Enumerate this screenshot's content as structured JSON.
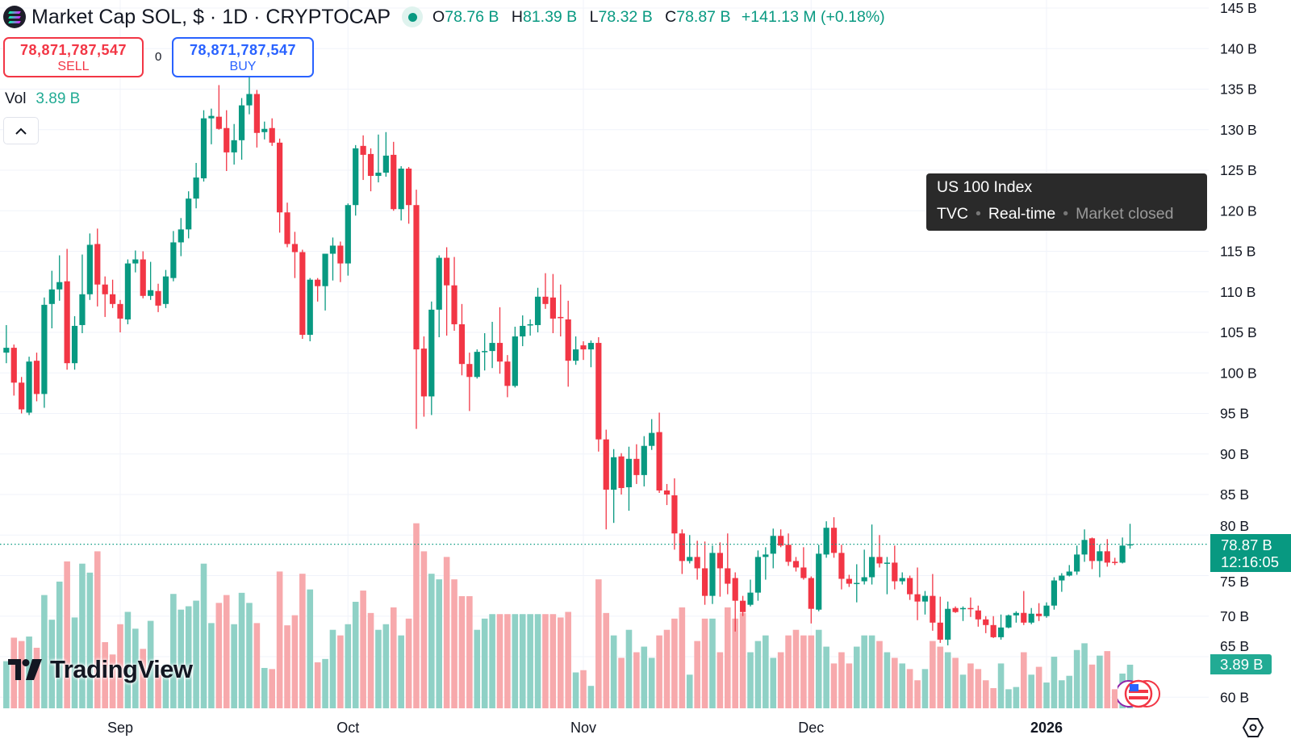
{
  "header": {
    "title": "Market Cap SOL, $ · 1D · CRYPTOCAP",
    "ohlc": {
      "o_label": "O",
      "o": "78.76 B",
      "h_label": "H",
      "h": "81.39 B",
      "l_label": "L",
      "l": "78.32 B",
      "c_label": "C",
      "c": "78.87 B",
      "change": "+141.13 M (+0.18%)"
    }
  },
  "trade": {
    "sell_price": "78,871,787,547",
    "sell_label": "SELL",
    "spread": "0",
    "buy_price": "78,871,787,547",
    "buy_label": "BUY"
  },
  "volume_legend": {
    "label": "Vol",
    "value": "3.89 B"
  },
  "tooltip": {
    "title": "US 100 Index",
    "source": "TVC",
    "mode": "Real-time",
    "status": "Market closed"
  },
  "price_badge": {
    "price": "78.87 B",
    "countdown": "12:16:05"
  },
  "volume_badge": "3.89 B",
  "brand": "TradingView",
  "colors": {
    "up": "#089981",
    "down": "#F23645",
    "vol_up": "#8fd1c6",
    "vol_down": "#f7a9ac"
  },
  "chart_data": {
    "type": "candlestick",
    "title": "Market Cap SOL, $ · 1D · CRYPTOCAP",
    "fields": [
      "open",
      "high",
      "low",
      "close",
      "volume"
    ],
    "units": "B",
    "ylim": [
      60,
      145
    ],
    "y_ticks": [
      "145 B",
      "140 B",
      "135 B",
      "130 B",
      "125 B",
      "120 B",
      "115 B",
      "110 B",
      "105 B",
      "100 B",
      "95 B",
      "90 B",
      "85 B",
      "80 B",
      "75 B",
      "70 B",
      "65 B",
      "60 B"
    ],
    "y_tick_values": [
      145,
      140,
      135,
      130,
      125,
      120,
      115,
      110,
      105,
      100,
      95,
      90,
      85,
      80,
      75,
      70,
      65,
      60
    ],
    "x_ticks": [
      {
        "label": "Sep",
        "index": 15
      },
      {
        "label": "Oct",
        "index": 45
      },
      {
        "label": "Nov",
        "index": 76
      },
      {
        "label": "Dec",
        "index": 106
      },
      {
        "label": "2026",
        "index": 137,
        "bold": true
      }
    ],
    "last_price": 78.87,
    "grid": true,
    "candles": [
      [
        102.5,
        105.9,
        101.2,
        103.1,
        4.2
      ],
      [
        103.1,
        103.5,
        97.2,
        98.8,
        6.3
      ],
      [
        98.8,
        99.5,
        95.0,
        95.5,
        6.0
      ],
      [
        95.1,
        102,
        94.8,
        101.4,
        6.4
      ],
      [
        101.5,
        102.5,
        96.5,
        97.4,
        5.4
      ],
      [
        97.4,
        109.3,
        95.7,
        108.4,
        10.1
      ],
      [
        108.5,
        112.6,
        105.5,
        110.3,
        7.9
      ],
      [
        110.3,
        114.5,
        108.9,
        111.2,
        11.3
      ],
      [
        111.3,
        115.3,
        100.4,
        101.2,
        13.1
      ],
      [
        101.2,
        107,
        100.4,
        105.8,
        8.1
      ],
      [
        105.9,
        114.6,
        104.9,
        109.7,
        12.9
      ],
      [
        109.7,
        117.2,
        109,
        115.8,
        12.1
      ],
      [
        115.9,
        117.8,
        108.2,
        110.9,
        14.0
      ],
      [
        110.9,
        111.9,
        106.9,
        109.7,
        5.9
      ],
      [
        109.7,
        111.5,
        108,
        108.5,
        4.8
      ],
      [
        108.5,
        109,
        105,
        106.7,
        7.5
      ],
      [
        106.6,
        114,
        106,
        113.5,
        8.6
      ],
      [
        113.5,
        115.1,
        112.4,
        114,
        7.1
      ],
      [
        114,
        115,
        109.2,
        109.5,
        5.3
      ],
      [
        109.5,
        113.7,
        109,
        110.2,
        7.8
      ],
      [
        110.1,
        111,
        107.5,
        108.3,
        3.0
      ],
      [
        108.5,
        112.7,
        108,
        111.9,
        3.9
      ],
      [
        111.7,
        117.5,
        111.3,
        116.1,
        10.2
      ],
      [
        116.1,
        119.1,
        114.4,
        117.7,
        8.8
      ],
      [
        117.7,
        122.4,
        116.6,
        121.5,
        9.1
      ],
      [
        121.5,
        125.9,
        120.3,
        124.1,
        9.6
      ],
      [
        124,
        132.4,
        123.6,
        131.4,
        12.9
      ],
      [
        131.4,
        132.6,
        128.2,
        131.7,
        7.6
      ],
      [
        131.6,
        135.5,
        130,
        130.1,
        9.4
      ],
      [
        130.2,
        132.4,
        124.9,
        127.2,
        10.1
      ],
      [
        127.2,
        130.7,
        125.7,
        128.7,
        7.5
      ],
      [
        128.7,
        133.9,
        126.3,
        133,
        10.3
      ],
      [
        133,
        136.6,
        131.9,
        134.4,
        9.4
      ],
      [
        134.4,
        134.9,
        127.8,
        129.6,
        7.6
      ],
      [
        129.7,
        131,
        128.8,
        130.1,
        3.6
      ],
      [
        130.2,
        131.4,
        128,
        128.4,
        3.5
      ],
      [
        128.4,
        128.9,
        117.3,
        119.8,
        12.2
      ],
      [
        119.8,
        121,
        115.5,
        115.9,
        7.4
      ],
      [
        115.9,
        117.4,
        111.7,
        114.9,
        8.3
      ],
      [
        114.9,
        115.2,
        104.2,
        104.7,
        12.0
      ],
      [
        104.7,
        111.7,
        103.9,
        111.5,
        10.6
      ],
      [
        111.5,
        111.7,
        108.8,
        110.7,
        4.1
      ],
      [
        110.7,
        114.7,
        107.7,
        114.7,
        4.4
      ],
      [
        114.7,
        116.7,
        111.4,
        115.7,
        7.0
      ],
      [
        115.7,
        116.2,
        111.2,
        113.5,
        6.5
      ],
      [
        113.5,
        120.9,
        112,
        120.7,
        7.5
      ],
      [
        120.7,
        128.1,
        119.4,
        127.7,
        9.5
      ],
      [
        128,
        129.3,
        123.8,
        126.9,
        10.5
      ],
      [
        127,
        127.7,
        122.4,
        124.3,
        8.5
      ],
      [
        124.3,
        129.4,
        123.5,
        124.7,
        7.0
      ],
      [
        124.7,
        129.7,
        124.2,
        126.8,
        7.5
      ],
      [
        126.9,
        128.5,
        120,
        120.2,
        9.0
      ],
      [
        120.2,
        125.5,
        118.8,
        125.2,
        6.5
      ],
      [
        125.2,
        125.4,
        118.4,
        120.7,
        8.0
      ],
      [
        120.7,
        122.6,
        93.1,
        102.9,
        16.5
      ],
      [
        103,
        104.5,
        94.6,
        97.1,
        14.0
      ],
      [
        97.1,
        108.8,
        94.8,
        107.8,
        12.0
      ],
      [
        107.8,
        114.5,
        104.4,
        114.2,
        11.5
      ],
      [
        114.2,
        115.5,
        104.6,
        110.8,
        13.5
      ],
      [
        110.8,
        114.3,
        105.2,
        106,
        11.5
      ],
      [
        106,
        108.5,
        99.7,
        101.1,
        10.0
      ],
      [
        101.1,
        102.5,
        95.3,
        99.5,
        10.0
      ],
      [
        99.5,
        102.9,
        99.3,
        102.6,
        7.0
      ],
      [
        102.6,
        104.9,
        100.3,
        102.7,
        8.0
      ],
      [
        102.7,
        106.3,
        100.6,
        103.7,
        8.4
      ],
      [
        103.7,
        108.1,
        99.9,
        101.4,
        8.4
      ],
      [
        101.4,
        102.2,
        97,
        98.4,
        8.4
      ],
      [
        98.4,
        105.7,
        98.2,
        104.5,
        8.4
      ],
      [
        104.5,
        107.1,
        103.3,
        105.8,
        8.4
      ],
      [
        105.9,
        106.6,
        104.6,
        106,
        8.4
      ],
      [
        105.9,
        110.5,
        105,
        109.4,
        8.4
      ],
      [
        109.4,
        112.3,
        107.9,
        108.5,
        8.4
      ],
      [
        109.3,
        112.2,
        104.9,
        106.7,
        8.4
      ],
      [
        106.9,
        110.9,
        104.5,
        106.8,
        8.1
      ],
      [
        106.6,
        108.9,
        98.3,
        101.5,
        8.6
      ],
      [
        101.5,
        104.5,
        101,
        102.9,
        3.2
      ],
      [
        103.4,
        103.9,
        101.6,
        102.9,
        3.4
      ],
      [
        102.9,
        104,
        100.7,
        103.7,
        2.0
      ],
      [
        103.7,
        104.4,
        90.3,
        91.8,
        11.5
      ],
      [
        91.8,
        93,
        80.7,
        85.6,
        8.5
      ],
      [
        85.6,
        90.6,
        81.5,
        89.6,
        6.5
      ],
      [
        89.7,
        90.1,
        85,
        85.8,
        4.5
      ],
      [
        85.9,
        90.9,
        83,
        89.4,
        7.0
      ],
      [
        89.4,
        91.2,
        86.3,
        87.4,
        5.0
      ],
      [
        87.4,
        92.2,
        86,
        91,
        5.5
      ],
      [
        91,
        94.3,
        90.5,
        92.6,
        4.5
      ],
      [
        92.7,
        95.1,
        85.2,
        85.5,
        6.5
      ],
      [
        85.5,
        86.3,
        83.7,
        85,
        7.0
      ],
      [
        84.9,
        87,
        78.2,
        80.2,
        8.0
      ],
      [
        80.2,
        80.7,
        75.2,
        76.8,
        9.0
      ],
      [
        76.8,
        80,
        76.5,
        77.3,
        3.0
      ],
      [
        77.3,
        79.3,
        74.5,
        75.9,
        6.0
      ],
      [
        75.9,
        79.2,
        71.4,
        72.5,
        8.0
      ],
      [
        72.5,
        78.7,
        71.5,
        77.8,
        8.0
      ],
      [
        77.8,
        79.1,
        72.4,
        75.9,
        5.0
      ],
      [
        75.9,
        80.2,
        72.7,
        74,
        9.0
      ],
      [
        74.7,
        75.4,
        68.1,
        71.9,
        8.0
      ],
      [
        71.9,
        72.5,
        70,
        70.5,
        8.5
      ],
      [
        71.4,
        74.5,
        71.2,
        72.9,
        5.0
      ],
      [
        72.9,
        78.1,
        71.9,
        77.3,
        6.0
      ],
      [
        77.3,
        78.5,
        74.5,
        77.6,
        6.5
      ],
      [
        77.7,
        80.8,
        75.9,
        79.9,
        4.5
      ],
      [
        79.9,
        80.7,
        78.5,
        78.7,
        5.0
      ],
      [
        78.8,
        80.2,
        76.2,
        76.7,
        6.5
      ],
      [
        76.8,
        77.3,
        75.5,
        76,
        7.0
      ],
      [
        76,
        78.5,
        74.5,
        74.7,
        6.5
      ],
      [
        74.7,
        74.9,
        69.1,
        70.9,
        6.5
      ],
      [
        70.8,
        78.8,
        70.6,
        77.7,
        7.0
      ],
      [
        77.6,
        81.7,
        77.2,
        80.9,
        5.5
      ],
      [
        80.9,
        82.2,
        77.2,
        77.8,
        4.0
      ],
      [
        77.8,
        78.8,
        73.3,
        74.6,
        5.0
      ],
      [
        74.6,
        75.1,
        73.6,
        74,
        4.0
      ],
      [
        74.1,
        76.4,
        71.7,
        74.1,
        5.5
      ],
      [
        74.3,
        78.2,
        73.9,
        74.8,
        6.5
      ],
      [
        74.8,
        81.3,
        73.9,
        77.3,
        6.5
      ],
      [
        77.3,
        80,
        76,
        76.5,
        6.0
      ],
      [
        76.6,
        77.3,
        72.7,
        76.6,
        5.0
      ],
      [
        76.6,
        78.7,
        73.3,
        74.3,
        4.5
      ],
      [
        74.3,
        75.4,
        73.9,
        74.7,
        4.0
      ],
      [
        74.7,
        75,
        72,
        72.7,
        3.5
      ],
      [
        72.7,
        76,
        69.5,
        71.8,
        2.5
      ],
      [
        71.8,
        73.1,
        70.2,
        72.5,
        3.5
      ],
      [
        72.5,
        75.2,
        68.2,
        69.2,
        6.0
      ],
      [
        69.2,
        72.4,
        66.7,
        67.1,
        5.5
      ],
      [
        67.1,
        71.8,
        66.4,
        70.9,
        5.0
      ],
      [
        71,
        71.2,
        70.4,
        70.5,
        4.5
      ],
      [
        70.9,
        71.2,
        69.4,
        71,
        3.0
      ],
      [
        71,
        72.3,
        69.9,
        70.9,
        4.0
      ],
      [
        70.7,
        71.3,
        68.7,
        69.6,
        3.5
      ],
      [
        69.6,
        70,
        67.9,
        68.9,
        2.5
      ],
      [
        68.9,
        70,
        67.3,
        67.4,
        1.8
      ],
      [
        67.4,
        70.2,
        67.1,
        68.6,
        4.0
      ],
      [
        68.6,
        70.2,
        68.5,
        70.1,
        1.7
      ],
      [
        70.1,
        70.6,
        69.2,
        70.4,
        1.9
      ],
      [
        70.4,
        73.1,
        68.9,
        69.2,
        5.0
      ],
      [
        69.2,
        71,
        69,
        70.3,
        3.0
      ],
      [
        70.3,
        71.6,
        69.4,
        70,
        3.7
      ],
      [
        70,
        71.7,
        69.8,
        71.3,
        2.3
      ],
      [
        71.3,
        74.8,
        70.8,
        74.4,
        4.6
      ],
      [
        74.4,
        75.3,
        73,
        75,
        2.5
      ],
      [
        75,
        76.3,
        74.9,
        75.5,
        2.9
      ],
      [
        75.5,
        78.7,
        75.1,
        77.6,
        5.2
      ],
      [
        77.6,
        80.7,
        76.7,
        79.4,
        5.8
      ],
      [
        79.6,
        79.7,
        75.8,
        76.8,
        3.9
      ],
      [
        76.8,
        78.8,
        74.8,
        78,
        4.7
      ],
      [
        78,
        79.5,
        76.1,
        76.6,
        5.1
      ],
      [
        76.7,
        77.2,
        76.3,
        76.6,
        1.7
      ],
      [
        76.6,
        79.7,
        76.5,
        78.7,
        3.1
      ],
      [
        78.76,
        81.39,
        78.32,
        78.87,
        3.89
      ]
    ]
  }
}
